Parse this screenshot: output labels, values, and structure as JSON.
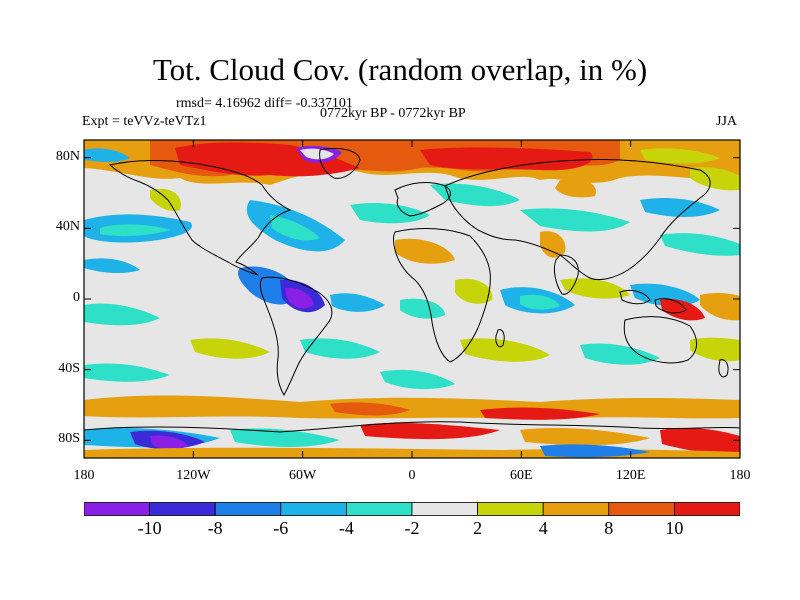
{
  "header": {
    "title": "Tot. Cloud Cov. (random overlap, in %)",
    "stats": "rmsd= 4.16962 diff= -0.337101",
    "period": "0772kyr BP - 0772kyr BP",
    "experiment": "Expt = teVVz-teVTz1",
    "season": "JJA"
  },
  "axes": {
    "lat_ticks": [
      {
        "value": 80,
        "label": "80N"
      },
      {
        "value": 40,
        "label": "40N"
      },
      {
        "value": 0,
        "label": "0"
      },
      {
        "value": -40,
        "label": "40S"
      },
      {
        "value": -80,
        "label": "80S"
      }
    ],
    "lon_ticks": [
      {
        "value": -180,
        "label": "180"
      },
      {
        "value": -120,
        "label": "120W"
      },
      {
        "value": -60,
        "label": "60W"
      },
      {
        "value": 0,
        "label": "0"
      },
      {
        "value": 60,
        "label": "60E"
      },
      {
        "value": 120,
        "label": "120E"
      },
      {
        "value": 180,
        "label": "180"
      }
    ]
  },
  "colorbar": {
    "labels": [
      "-10",
      "-8",
      "-6",
      "-4",
      "-2",
      "2",
      "4",
      "8",
      "10"
    ],
    "colors": [
      "#8a1fe6",
      "#3a2ad8",
      "#1f7fe8",
      "#1fb2e8",
      "#2ee0c8",
      "#e6e6e6",
      "#c8d40a",
      "#e6a00f",
      "#e65a0f",
      "#e61a14"
    ]
  }
}
